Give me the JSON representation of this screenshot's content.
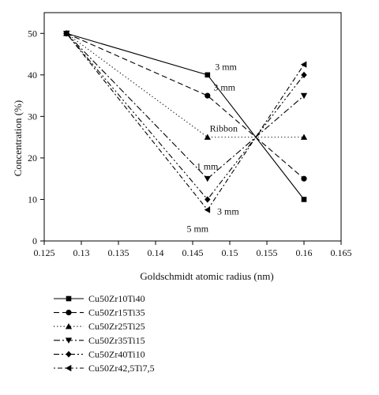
{
  "chart_data": {
    "type": "line",
    "xlabel": "Goldschmidt atomic radius (nm)",
    "ylabel": "Concentration (%)",
    "xlim": [
      0.125,
      0.165
    ],
    "ylim": [
      0,
      55
    ],
    "x_ticks": [
      "0.125",
      "0.13",
      "0.135",
      "0.14",
      "0.145",
      "0.15",
      "0.155",
      "0.16",
      "0.165"
    ],
    "y_ticks": [
      "0",
      "10",
      "20",
      "30",
      "40",
      "50"
    ],
    "x": [
      0.128,
      0.147,
      0.16
    ],
    "series": [
      {
        "name": "Cu50Zr10Ti40",
        "values": [
          50,
          40,
          10
        ],
        "marker": "square",
        "dash": "solid",
        "color": "#000000"
      },
      {
        "name": "Cu50Zr15Ti35",
        "values": [
          50,
          35,
          15
        ],
        "marker": "circle",
        "dash": "dashed",
        "color": "#000000"
      },
      {
        "name": "Cu50Zr25Ti25",
        "values": [
          50,
          25,
          25
        ],
        "marker": "triangle-up",
        "dash": "dotted",
        "color": "#000000"
      },
      {
        "name": "Cu50Zr35Ti15",
        "values": [
          50,
          15,
          35
        ],
        "marker": "triangle-down",
        "dash": "dashdot",
        "color": "#000000"
      },
      {
        "name": "Cu50Zr40Ti10",
        "values": [
          50,
          10,
          40
        ],
        "marker": "diamond",
        "dash": "dashdotdot",
        "color": "#000000"
      },
      {
        "name": "Cu50Zr42,5Ti7,5",
        "values": [
          50,
          7.5,
          42.5
        ],
        "marker": "triangle-left",
        "dash": "dotdash",
        "color": "#000000"
      }
    ],
    "annotations": [
      {
        "text": "3 mm",
        "x": 0.148,
        "y": 41.2
      },
      {
        "text": "3 mm",
        "x": 0.1478,
        "y": 36.3
      },
      {
        "text": "Ribbon",
        "x": 0.1473,
        "y": 26.4
      },
      {
        "text": "1 mm",
        "x": 0.1455,
        "y": 17.2
      },
      {
        "text": "3 mm",
        "x": 0.1483,
        "y": 6.4
      },
      {
        "text": "5 mm",
        "x": 0.1442,
        "y": 2.2
      }
    ],
    "grid": false,
    "legend": "bottom-left"
  }
}
